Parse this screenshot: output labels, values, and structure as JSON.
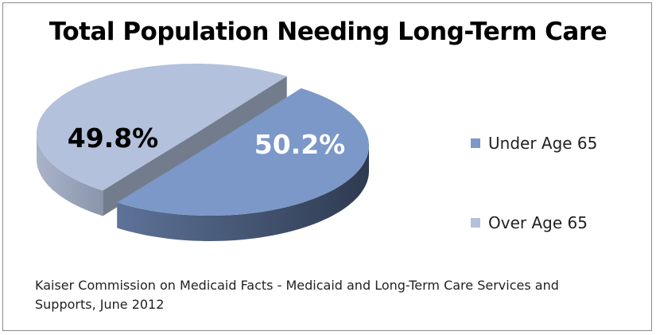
{
  "chart_data": {
    "type": "pie",
    "style": "3d-exploded",
    "title": "Total Population Needing Long-Term Care",
    "slices": [
      {
        "name": "Under Age 65",
        "value": 50.2,
        "label": "50.2%",
        "color": "#7b98c8",
        "label_color": "#ffffff"
      },
      {
        "name": "Over Age 65",
        "value": 49.8,
        "label": "49.8%",
        "color": "#b4c1dc",
        "label_color": "#000000"
      }
    ],
    "legend_position": "right",
    "source": "Kaiser Commission on Medicaid Facts - Medicaid and Long-Term Care Services and Supports, June 2012"
  }
}
